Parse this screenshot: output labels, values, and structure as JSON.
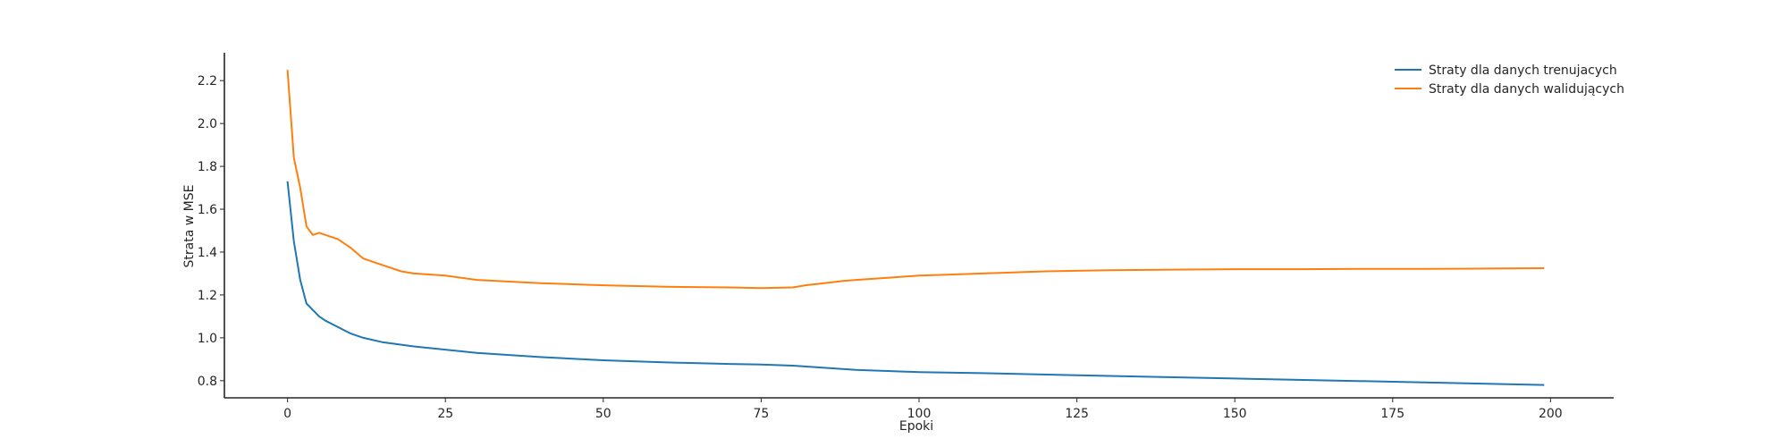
{
  "chart_data": {
    "type": "line",
    "title": "",
    "xlabel": "Epoki",
    "ylabel": "Strata w MSE",
    "xlim": [
      -10,
      210
    ],
    "ylim": [
      0.72,
      2.33
    ],
    "xticks": [
      0,
      25,
      50,
      75,
      100,
      125,
      150,
      175,
      200
    ],
    "xtick_labels": [
      "0",
      "25",
      "50",
      "75",
      "100",
      "125",
      "150",
      "175",
      "200"
    ],
    "yticks": [
      0.8,
      1.0,
      1.2,
      1.4,
      1.6,
      1.8,
      2.0,
      2.2
    ],
    "ytick_labels": [
      "0.8",
      "1.0",
      "1.2",
      "1.4",
      "1.6",
      "1.8",
      "2.0",
      "2.2"
    ],
    "grid": false,
    "legend_position": "top-right",
    "series": [
      {
        "name": "Straty dla danych trenujacych",
        "color": "#1f77b4",
        "x": [
          0,
          1,
          2,
          3,
          4,
          5,
          6,
          8,
          10,
          12,
          15,
          20,
          25,
          30,
          40,
          50,
          60,
          70,
          75,
          80,
          85,
          90,
          95,
          100,
          110,
          125,
          150,
          175,
          199
        ],
        "y": [
          1.73,
          1.45,
          1.27,
          1.16,
          1.13,
          1.1,
          1.08,
          1.05,
          1.02,
          1.0,
          0.98,
          0.96,
          0.945,
          0.93,
          0.91,
          0.895,
          0.885,
          0.878,
          0.875,
          0.87,
          0.86,
          0.85,
          0.845,
          0.84,
          0.835,
          0.825,
          0.81,
          0.795,
          0.78
        ]
      },
      {
        "name": "Straty dla danych walidujących",
        "color": "#ff7f0e",
        "x": [
          0,
          1,
          2,
          3,
          4,
          5,
          6,
          8,
          10,
          12,
          15,
          18,
          20,
          25,
          30,
          40,
          50,
          60,
          70,
          75,
          80,
          82,
          85,
          88,
          90,
          95,
          100,
          105,
          110,
          115,
          120,
          130,
          140,
          150,
          160,
          170,
          180,
          190,
          199
        ],
        "y": [
          2.25,
          1.84,
          1.7,
          1.52,
          1.48,
          1.49,
          1.48,
          1.46,
          1.42,
          1.37,
          1.34,
          1.31,
          1.3,
          1.29,
          1.27,
          1.255,
          1.245,
          1.238,
          1.235,
          1.232,
          1.235,
          1.245,
          1.255,
          1.265,
          1.27,
          1.28,
          1.29,
          1.295,
          1.3,
          1.305,
          1.31,
          1.315,
          1.318,
          1.32,
          1.32,
          1.322,
          1.322,
          1.323,
          1.325
        ]
      }
    ]
  }
}
